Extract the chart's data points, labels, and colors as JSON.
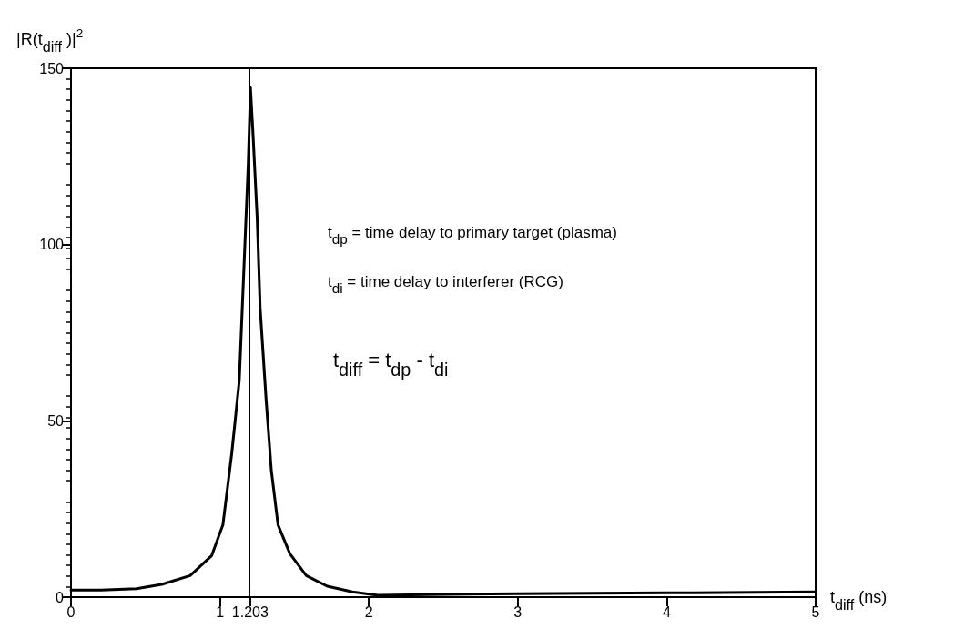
{
  "chart_data": {
    "type": "line",
    "ylabel": "|R(t$_{diff}$ )|$^{2}$",
    "xlabel": "t$_{diff}$ (ns)",
    "x": [
      0,
      0.2,
      0.44,
      0.61,
      0.8,
      0.945,
      1.02,
      1.08,
      1.13,
      1.15,
      1.17,
      1.19,
      1.205,
      1.22,
      1.25,
      1.27,
      1.31,
      1.345,
      1.39,
      1.47,
      1.58,
      1.72,
      1.89,
      2.06,
      2.5,
      3,
      4,
      5
    ],
    "series": [
      {
        "color": "#000000",
        "values": [
          2,
          2,
          2.4,
          3.6,
          6.1,
          11.8,
          20.5,
          41,
          61.5,
          82,
          102.5,
          123,
          144.5,
          133,
          107.6,
          82,
          56,
          36,
          20.5,
          12.3,
          6.1,
          3.1,
          1.5,
          0.5,
          0.8,
          1,
          1.2,
          1.5
        ]
      }
    ],
    "xlim": [
      0,
      5
    ],
    "xticks": [
      0,
      1,
      1.203,
      2,
      3,
      4,
      5
    ],
    "ylim": [
      0,
      150
    ],
    "yticks": [
      0,
      50,
      100,
      150
    ],
    "ref_lines": [
      {
        "axis": "x",
        "value": 1.203,
        "color": "#000000"
      }
    ],
    "annotations": [
      "t$_{dp}$ = time delay to primary target (plasma)",
      "t$_{di}$ = time delay to interferer (RCG)",
      "t$_{diff}$ = t$_{dp}$ - t$_{di}$"
    ],
    "grid": false,
    "marker": "none",
    "line_style": "solid"
  }
}
